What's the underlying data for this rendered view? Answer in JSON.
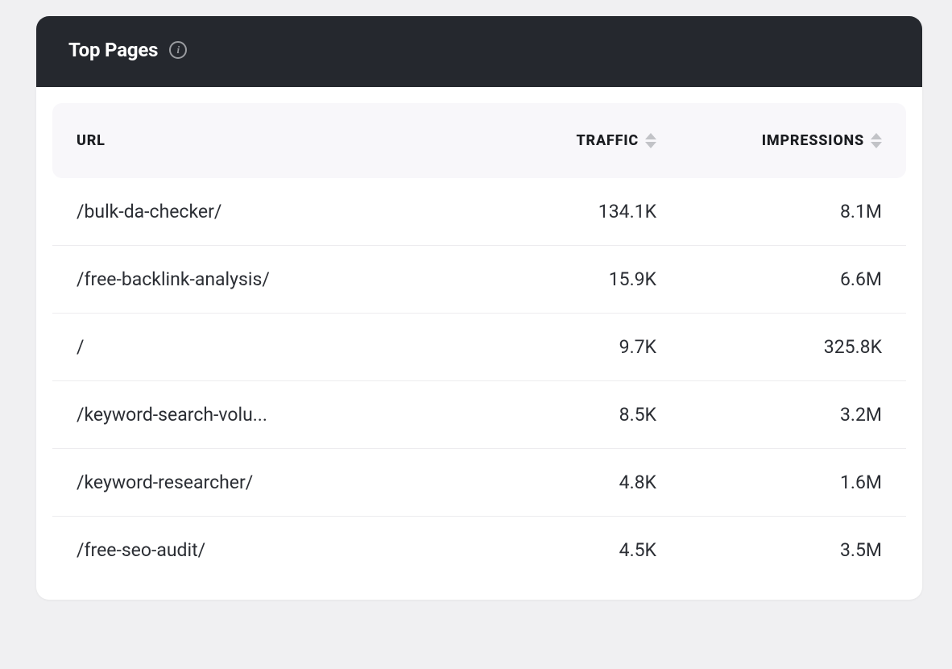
{
  "card": {
    "title": "Top Pages"
  },
  "table": {
    "columns": {
      "url": "URL",
      "traffic": "TRAFFIC",
      "impressions": "IMPRESSIONS"
    },
    "rows": [
      {
        "url": "/bulk-da-checker/",
        "traffic": "134.1K",
        "impressions": "8.1M"
      },
      {
        "url": "/free-backlink-analysis/",
        "traffic": "15.9K",
        "impressions": "6.6M"
      },
      {
        "url": "/",
        "traffic": "9.7K",
        "impressions": "325.8K"
      },
      {
        "url": "/keyword-search-volu...",
        "traffic": "8.5K",
        "impressions": "3.2M"
      },
      {
        "url": "/keyword-researcher/",
        "traffic": "4.8K",
        "impressions": "1.6M"
      },
      {
        "url": "/free-seo-audit/",
        "traffic": "4.5K",
        "impressions": "3.5M"
      }
    ]
  },
  "colors": {
    "page_bg": "#f0f0f2",
    "card_bg": "#ffffff",
    "header_bg": "#25282e",
    "table_header_bg": "#f8f7fa",
    "text_primary": "#2b2e34",
    "text_header": "#1a1c20",
    "row_border": "#edecef",
    "sort_icon": "#c2c3c7",
    "info_icon": "#9a9ca0"
  }
}
